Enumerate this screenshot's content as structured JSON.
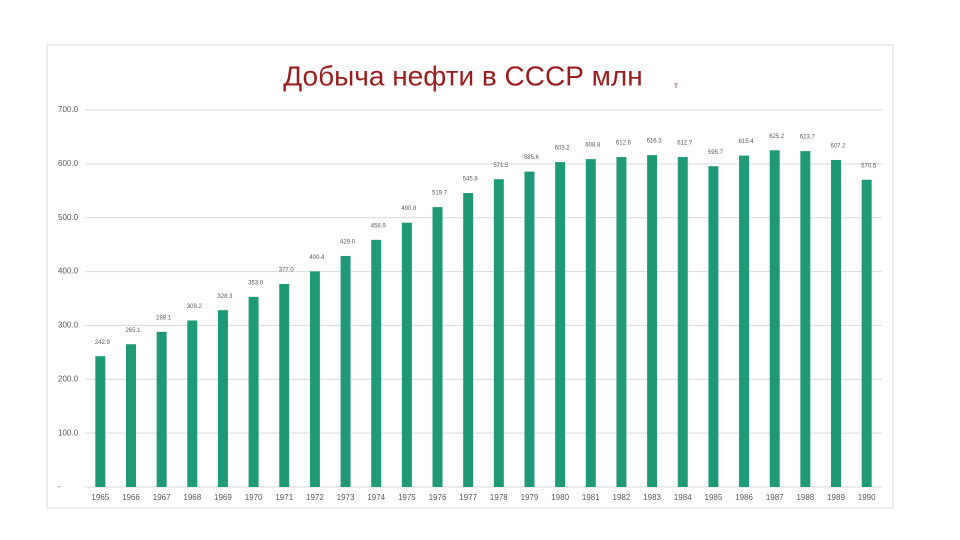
{
  "chart_data": {
    "type": "bar",
    "title": "Добыча нефти в СССР млн",
    "title_unit": "т",
    "categories": [
      "1965",
      "1966",
      "1967",
      "1968",
      "1969",
      "1970",
      "1971",
      "1972",
      "1973",
      "1974",
      "1975",
      "1976",
      "1977",
      "1978",
      "1979",
      "1980",
      "1981",
      "1982",
      "1983",
      "1984",
      "1985",
      "1986",
      "1987",
      "1988",
      "1989",
      "1990"
    ],
    "values": [
      242.9,
      265.1,
      288.1,
      309.2,
      328.3,
      353.0,
      377.0,
      400.4,
      429.0,
      458.9,
      490.8,
      519.7,
      545.8,
      571.5,
      585.6,
      603.2,
      608.8,
      612.6,
      616.3,
      612.7,
      595.7,
      615.4,
      625.2,
      623.7,
      607.2,
      570.5
    ],
    "value_labels": [
      "242.9",
      "265.1",
      "288.1",
      "309.2",
      "328.3",
      "353.0",
      "377.0",
      "400.4",
      "429.0",
      "458.9",
      "490.8",
      "519.7",
      "545.8",
      "571.5",
      "585.6",
      "603.2",
      "608.8",
      "612.6",
      "616.3",
      "612.7",
      "595.7",
      "615.4",
      "625.2",
      "623.7",
      "607.2",
      "570.5"
    ],
    "color": "#1f9a77",
    "ylim": [
      0,
      700
    ],
    "yticks": [
      {
        "value": 0,
        "label": "-"
      },
      {
        "value": 100,
        "label": "100.0"
      },
      {
        "value": 200,
        "label": "200.0"
      },
      {
        "value": 300,
        "label": "300.0"
      },
      {
        "value": 400,
        "label": "400.0"
      },
      {
        "value": 500,
        "label": "500.0"
      },
      {
        "value": 600,
        "label": "600.0"
      },
      {
        "value": 700,
        "label": "700.0"
      }
    ],
    "grid": true
  }
}
